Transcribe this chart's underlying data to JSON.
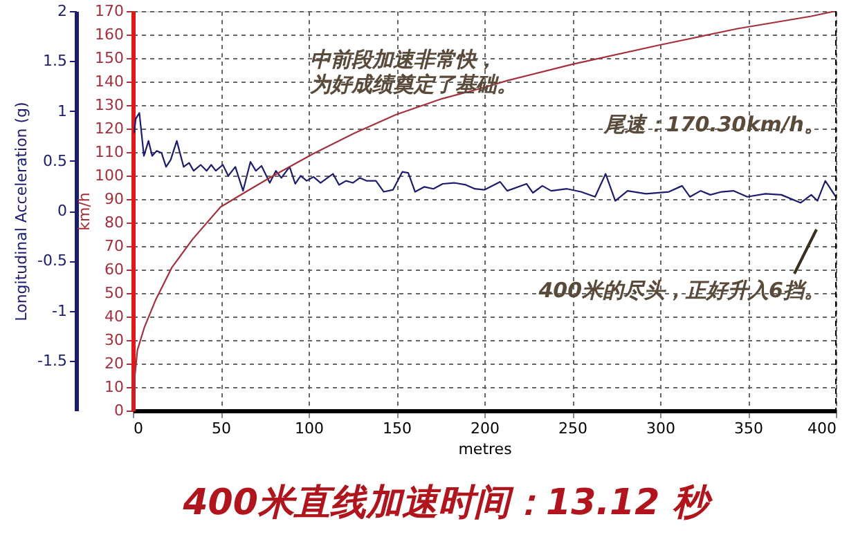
{
  "chart_data": {
    "type": "line",
    "xlabel": "metres",
    "ylabel": "Longitudinal Acceleration (g)",
    "y2label": "km/h",
    "xlim": [
      0,
      400
    ],
    "xticks": [
      0,
      50,
      100,
      150,
      200,
      250,
      300,
      350,
      400
    ],
    "ylim": [
      -2,
      2
    ],
    "yticks": [
      -1.5,
      -1,
      -0.5,
      0,
      0.5,
      1,
      1.5,
      2
    ],
    "y2lim": [
      0,
      170
    ],
    "y2ticks": [
      0,
      10,
      20,
      30,
      40,
      50,
      60,
      70,
      80,
      90,
      100,
      110,
      120,
      130,
      140,
      150,
      160,
      170
    ],
    "grid": true,
    "line_style": "solid",
    "marker": "none",
    "series": [
      {
        "color": "#1c1c6e",
        "x": [
          0.8,
          1.6,
          3.7,
          6.3,
          8.9,
          11,
          13.6,
          16.3,
          18.9,
          21.5,
          25,
          28.9,
          32,
          34.6,
          38.6,
          42,
          44.6,
          47.2,
          51.2,
          54.3,
          58.3,
          62.7,
          66.9,
          70,
          73.2,
          77.9,
          81.4,
          84.5,
          89.2,
          92.4,
          95.5,
          98.9,
          102.8,
          106.8,
          110.7,
          113.9,
          117.3,
          121.3,
          125.2,
          129.1,
          133.1,
          138.3,
          142.8,
          148,
          153.3,
          156.7,
          160.6,
          165.9,
          171,
          176.3,
          182.8,
          189.4,
          194.6,
          200,
          209,
          213,
          224,
          227.6,
          233,
          238,
          247,
          255,
          263,
          269,
          274.5,
          281.5,
          292,
          305,
          312.5,
          317,
          323,
          328.6,
          335,
          341.7,
          349.6,
          360,
          369,
          380,
          386,
          389.5,
          394,
          400
        ],
        "values": [
          0.78,
          0.92,
          0.98,
          0.55,
          0.7,
          0.55,
          0.6,
          0.58,
          0.44,
          0.51,
          0.7,
          0.44,
          0.48,
          0.4,
          0.46,
          0.4,
          0.46,
          0.4,
          0.46,
          0.35,
          0.44,
          0.2,
          0.49,
          0.4,
          0.45,
          0.28,
          0.4,
          0.33,
          0.44,
          0.27,
          0.35,
          0.3,
          0.34,
          0.28,
          0.33,
          0.37,
          0.26,
          0.3,
          0.28,
          0.33,
          0.3,
          0.3,
          0.19,
          0.21,
          0.39,
          0.38,
          0.19,
          0.24,
          0.22,
          0.27,
          0.28,
          0.26,
          0.22,
          0.21,
          0.29,
          0.2,
          0.27,
          0.18,
          0.25,
          0.2,
          0.22,
          0.19,
          0.14,
          0.37,
          0.1,
          0.2,
          0.17,
          0.19,
          0.25,
          0.14,
          0.2,
          0.16,
          0.19,
          0.2,
          0.14,
          0.17,
          0.16,
          0.08,
          0.16,
          0.1,
          0.3,
          0.14
        ]
      },
      {
        "color": "#a3303c",
        "axis": "y2",
        "x": [
          0,
          0.5,
          2.6,
          6.6,
          13.1,
          22.3,
          34,
          49.9,
          63,
          78.7,
          102.4,
          126,
          149.6,
          175.9,
          200,
          213,
          249.9,
          299.5,
          344,
          386,
          400
        ],
        "values": [
          0,
          10,
          25.7,
          35.5,
          47.3,
          61,
          72.9,
          86.6,
          92.5,
          99.4,
          109.2,
          118,
          125.9,
          132.7,
          137.5,
          140.4,
          147.3,
          155.5,
          162.5,
          167.8,
          170
        ]
      }
    ],
    "annotations": [
      "中前段加速非常快，",
      "为好成绩奠定了基础。",
      "尾速：170.30km/h。",
      "400米的尽头，正好升入6挡。",
      "400米直线加速时间：13.12 秒"
    ]
  }
}
